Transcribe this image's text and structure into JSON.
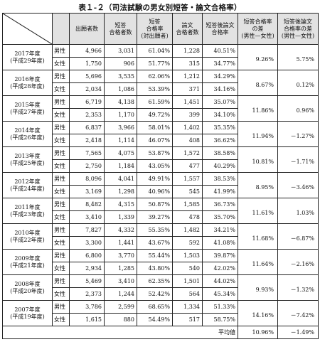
{
  "title": "表１-２（司法試験の男女別短答・論文合格率）",
  "headers": {
    "applicants": "出願者数",
    "short_passers": [
      "短答",
      "合格者数"
    ],
    "short_rate": [
      "短答",
      "合格率",
      "(対出願者)"
    ],
    "essay_passers": [
      "論文",
      "合格者数"
    ],
    "essay_rate": [
      "短答後論文",
      "合格率"
    ],
    "short_diff": [
      "短答合格率",
      "の差",
      "(男性—女性)"
    ],
    "essay_diff": [
      "短答後論文",
      "合格率の差",
      "(男性—女性)"
    ]
  },
  "sex_labels": {
    "male": "男性",
    "female": "女性"
  },
  "years": [
    {
      "year": "2017年度",
      "era": "(平成29年度)",
      "male": [
        "4,966",
        "3,031",
        "61.04%",
        "1,228",
        "40.51%"
      ],
      "female": [
        "1,750",
        "906",
        "51.77%",
        "315",
        "34.77%"
      ],
      "short_diff": "9.26%",
      "essay_diff": "5.75%"
    },
    {
      "year": "2016年度",
      "era": "(平成28年度)",
      "male": [
        "5,696",
        "3,535",
        "62.06%",
        "1,212",
        "34.29%"
      ],
      "female": [
        "2,034",
        "1,086",
        "53.39%",
        "371",
        "34.16%"
      ],
      "short_diff": "8.67%",
      "essay_diff": "0.12%"
    },
    {
      "year": "2015年度",
      "era": "(平成27年度)",
      "male": [
        "6,719",
        "4,138",
        "61.59%",
        "1,451",
        "35.07%"
      ],
      "female": [
        "2,353",
        "1,170",
        "49.72%",
        "399",
        "34.10%"
      ],
      "short_diff": "11.86%",
      "essay_diff": "0.96%"
    },
    {
      "year": "2014年度",
      "era": "(平成26年度)",
      "male": [
        "6,837",
        "3,966",
        "58.01%",
        "1,402",
        "35.35%"
      ],
      "female": [
        "2,418",
        "1,114",
        "46.07%",
        "408",
        "36.62%"
      ],
      "short_diff": "11.94%",
      "essay_diff": "－1.27%"
    },
    {
      "year": "2013年度",
      "era": "(平成25年度)",
      "male": [
        "7,565",
        "4,075",
        "53.87%",
        "1,572",
        "38.58%"
      ],
      "female": [
        "2,750",
        "1,184",
        "43.05%",
        "477",
        "40.29%"
      ],
      "short_diff": "10.81%",
      "essay_diff": "－1.71%"
    },
    {
      "year": "2012年度",
      "era": "(平成24年度)",
      "male": [
        "8,096",
        "4,041",
        "49.91%",
        "1,557",
        "38.53%"
      ],
      "female": [
        "3,169",
        "1,298",
        "40.96%",
        "545",
        "41.99%"
      ],
      "short_diff": "8.95%",
      "essay_diff": "－3.46%"
    },
    {
      "year": "2011年度",
      "era": "(平成23年度)",
      "male": [
        "8,482",
        "4,315",
        "50.87%",
        "1,585",
        "36.73%"
      ],
      "female": [
        "3,410",
        "1,339",
        "39.27%",
        "478",
        "35.70%"
      ],
      "short_diff": "11.61%",
      "essay_diff": "1.03%"
    },
    {
      "year": "2010年度",
      "era": "(平成22年度)",
      "male": [
        "7,827",
        "4,332",
        "55.35%",
        "1,482",
        "34.21%"
      ],
      "female": [
        "3,300",
        "1,441",
        "43.67%",
        "592",
        "41.08%"
      ],
      "short_diff": "11.68%",
      "essay_diff": "－6.87%"
    },
    {
      "year": "2009年度",
      "era": "(平成21年度)",
      "male": [
        "6,800",
        "3,770",
        "55.44%",
        "1,503",
        "39.87%"
      ],
      "female": [
        "2,934",
        "1,285",
        "43.80%",
        "540",
        "42.02%"
      ],
      "short_diff": "11.64%",
      "essay_diff": "－2.16%"
    },
    {
      "year": "2008年度",
      "era": "(平成20年度)",
      "male": [
        "5,469",
        "3,410",
        "62.35%",
        "1,501",
        "44.02%"
      ],
      "female": [
        "2,373",
        "1,244",
        "52.42%",
        "564",
        "45.34%"
      ],
      "short_diff": "9.93%",
      "essay_diff": "－1.32%"
    },
    {
      "year": "2007年度",
      "era": "(平成19年度)",
      "male": [
        "3,786",
        "2,599",
        "68.65%",
        "1,334",
        "51.33%"
      ],
      "female": [
        "1,615",
        "880",
        "54.49%",
        "517",
        "58.75%"
      ],
      "short_diff": "14.16%",
      "essay_diff": "－7.42%"
    }
  ],
  "average": {
    "label": "平均値",
    "short_diff": "10.96%",
    "essay_diff": "－1.49%"
  }
}
